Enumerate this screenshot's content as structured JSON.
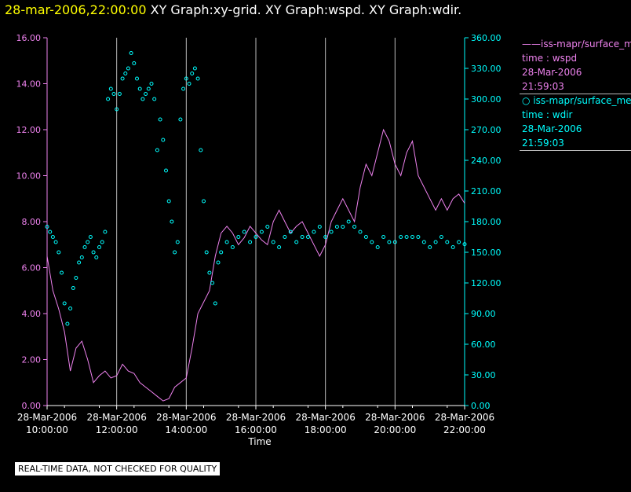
{
  "header": {
    "timestamp": "28-mar-2006,22:00:00",
    "graphs": "XY Graph:xy-grid.  XY Graph:wspd.  XY Graph:wdir."
  },
  "disclaimer": "REAL-TIME DATA, NOT CHECKED FOR QUALITY",
  "legend": [
    {
      "marker": "——",
      "name": "iss-mapr/surface_meteorology",
      "line2": "time : wspd",
      "line3": "28-Mar-2006",
      "line4": "21:59:03"
    },
    {
      "marker": "○",
      "name": "iss-mapr/surface_meteorology",
      "line2": "time : wdir",
      "line3": "28-Mar-2006",
      "line4": "21:59:03"
    }
  ],
  "colors": {
    "wspd": "#ee82ee",
    "wdir": "#00ffff",
    "grid": "#bbbbbb",
    "axis": "#ffffff"
  },
  "chart_data": {
    "type": "line",
    "xlabel": "Time",
    "x_ticks": [
      {
        "date": "28-Mar-2006",
        "time": "10:00:00"
      },
      {
        "date": "28-Mar-2006",
        "time": "12:00:00"
      },
      {
        "date": "28-Mar-2006",
        "time": "14:00:00"
      },
      {
        "date": "28-Mar-2006",
        "time": "16:00:00"
      },
      {
        "date": "28-Mar-2006",
        "time": "18:00:00"
      },
      {
        "date": "28-Mar-2006",
        "time": "20:00:00"
      },
      {
        "date": "28-Mar-2006",
        "time": "22:00:00"
      }
    ],
    "xlim": [
      "2006-03-28 10:00",
      "2006-03-28 22:00"
    ],
    "y_left": {
      "ylim": [
        0,
        16
      ],
      "ticks": [
        "0.00",
        "2.00",
        "4.00",
        "6.00",
        "8.00",
        "10.00",
        "12.00",
        "14.00",
        "16.00"
      ],
      "color": "#ee82ee"
    },
    "y_right": {
      "ylim": [
        0,
        360
      ],
      "ticks": [
        "0.00",
        "30.00",
        "60.00",
        "90.00",
        "120.00",
        "150.00",
        "180.00",
        "210.00",
        "240.00",
        "270.00",
        "300.00",
        "330.00",
        "360.00"
      ],
      "color": "#00ffff"
    },
    "grid": "vertical",
    "series": [
      {
        "name": "iss-mapr/surface_meteorology time : wspd",
        "style": "line",
        "axis": "left",
        "x": [
          "10:00",
          "10:10",
          "10:20",
          "10:30",
          "10:40",
          "10:50",
          "11:00",
          "11:10",
          "11:20",
          "11:30",
          "11:40",
          "11:50",
          "12:00",
          "12:10",
          "12:20",
          "12:30",
          "12:40",
          "12:50",
          "13:00",
          "13:10",
          "13:20",
          "13:30",
          "13:40",
          "13:50",
          "14:00",
          "14:10",
          "14:20",
          "14:30",
          "14:40",
          "14:50",
          "15:00",
          "15:10",
          "15:20",
          "15:30",
          "15:40",
          "15:50",
          "16:00",
          "16:10",
          "16:20",
          "16:30",
          "16:40",
          "16:50",
          "17:00",
          "17:10",
          "17:20",
          "17:30",
          "17:40",
          "17:50",
          "18:00",
          "18:10",
          "18:20",
          "18:30",
          "18:40",
          "18:50",
          "19:00",
          "19:10",
          "19:20",
          "19:30",
          "19:40",
          "19:50",
          "20:00",
          "20:10",
          "20:20",
          "20:30",
          "20:40",
          "20:50",
          "21:00",
          "21:10",
          "21:20",
          "21:30",
          "21:40",
          "21:50",
          "22:00"
        ],
        "y": [
          6.5,
          5.0,
          4.2,
          3.2,
          1.5,
          2.5,
          2.8,
          2.0,
          1.0,
          1.3,
          1.5,
          1.2,
          1.3,
          1.8,
          1.5,
          1.4,
          1.0,
          0.8,
          0.6,
          0.4,
          0.2,
          0.3,
          0.8,
          1.0,
          1.2,
          2.5,
          4.0,
          4.5,
          5.0,
          6.5,
          7.5,
          7.8,
          7.5,
          7.0,
          7.3,
          7.8,
          7.5,
          7.2,
          7.0,
          8.0,
          8.5,
          8.0,
          7.5,
          7.8,
          8.0,
          7.5,
          7.0,
          6.5,
          7.0,
          8.0,
          8.5,
          9.0,
          8.5,
          8.0,
          9.5,
          10.5,
          10.0,
          11.0,
          12.0,
          11.5,
          10.5,
          10.0,
          11.0,
          11.5,
          10.0,
          9.5,
          9.0,
          8.5,
          9.0,
          8.5,
          9.0,
          9.2,
          8.8
        ]
      },
      {
        "name": "iss-mapr/surface_meteorology time : wdir",
        "style": "points",
        "axis": "right",
        "x": [
          "10:00",
          "10:05",
          "10:10",
          "10:15",
          "10:20",
          "10:25",
          "10:30",
          "10:35",
          "10:40",
          "10:45",
          "10:50",
          "10:55",
          "11:00",
          "11:05",
          "11:10",
          "11:15",
          "11:20",
          "11:25",
          "11:30",
          "11:35",
          "11:40",
          "11:45",
          "11:50",
          "11:55",
          "12:00",
          "12:05",
          "12:10",
          "12:15",
          "12:20",
          "12:25",
          "12:30",
          "12:35",
          "12:40",
          "12:45",
          "12:50",
          "12:55",
          "13:00",
          "13:05",
          "13:10",
          "13:15",
          "13:20",
          "13:25",
          "13:30",
          "13:35",
          "13:40",
          "13:45",
          "13:50",
          "13:55",
          "14:00",
          "14:05",
          "14:10",
          "14:15",
          "14:20",
          "14:25",
          "14:30",
          "14:35",
          "14:40",
          "14:45",
          "14:50",
          "14:55",
          "15:00",
          "15:10",
          "15:20",
          "15:30",
          "15:40",
          "15:50",
          "16:00",
          "16:10",
          "16:20",
          "16:30",
          "16:40",
          "16:50",
          "17:00",
          "17:10",
          "17:20",
          "17:30",
          "17:40",
          "17:50",
          "18:00",
          "18:10",
          "18:20",
          "18:30",
          "18:40",
          "18:50",
          "19:00",
          "19:10",
          "19:20",
          "19:30",
          "19:40",
          "19:50",
          "20:00",
          "20:10",
          "20:20",
          "20:30",
          "20:40",
          "20:50",
          "21:00",
          "21:10",
          "21:20",
          "21:30",
          "21:40",
          "21:50",
          "22:00"
        ],
        "y": [
          175,
          170,
          165,
          160,
          150,
          130,
          100,
          80,
          95,
          115,
          125,
          140,
          145,
          155,
          160,
          165,
          150,
          145,
          155,
          160,
          170,
          300,
          310,
          305,
          290,
          305,
          320,
          325,
          330,
          345,
          335,
          320,
          310,
          300,
          305,
          310,
          315,
          300,
          250,
          280,
          260,
          230,
          200,
          180,
          150,
          160,
          280,
          310,
          320,
          315,
          325,
          330,
          320,
          250,
          200,
          150,
          130,
          120,
          100,
          140,
          150,
          160,
          155,
          165,
          170,
          160,
          165,
          170,
          175,
          160,
          155,
          165,
          170,
          160,
          165,
          165,
          170,
          175,
          165,
          170,
          175,
          175,
          180,
          175,
          170,
          165,
          160,
          155,
          165,
          160,
          160,
          165,
          165,
          165,
          165,
          160,
          155,
          160,
          165,
          160,
          155,
          160,
          158
        ]
      }
    ]
  }
}
